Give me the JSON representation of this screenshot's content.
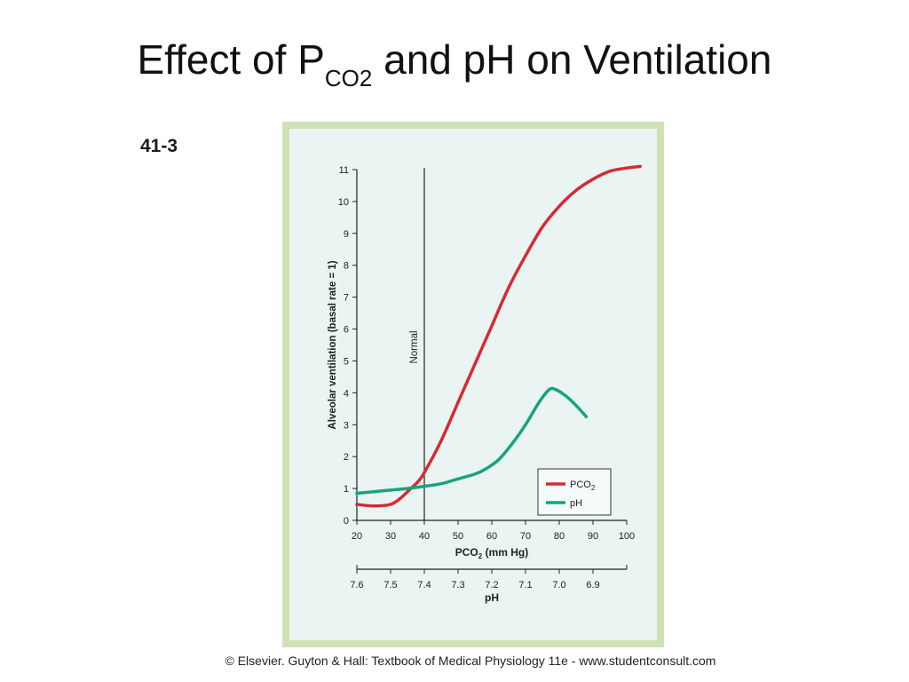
{
  "slide": {
    "title_main": "Effect of P",
    "title_sub": "CO2",
    "title_rest": " and pH on Ventilation",
    "figure_label": "41-3",
    "credit": "© Elsevier. Guyton & Hall: Textbook of Medical Physiology 11e - www.studentconsult.com"
  },
  "chart_data": {
    "type": "line",
    "ylabel": "Alveolar ventilation (basal rate = 1)",
    "xlabel": "PCO2 (mm Hg)",
    "xlabel2": "pH",
    "xlim": [
      20,
      100
    ],
    "ylim": [
      0,
      11
    ],
    "x_ticks": [
      "20",
      "30",
      "40",
      "50",
      "60",
      "70",
      "80",
      "90",
      "100"
    ],
    "y_ticks": [
      "0",
      "1",
      "2",
      "3",
      "4",
      "5",
      "6",
      "7",
      "8",
      "9",
      "10",
      "11"
    ],
    "ph_ticks": [
      {
        "label": "7.6",
        "pco2": 20
      },
      {
        "label": "7.5",
        "pco2": 30
      },
      {
        "label": "7.4",
        "pco2": 40
      },
      {
        "label": "7.3",
        "pco2": 50
      },
      {
        "label": "7.2",
        "pco2": 60
      },
      {
        "label": "7.1",
        "pco2": 70
      },
      {
        "label": "7.0",
        "pco2": 80
      },
      {
        "label": "6.9",
        "pco2": 90
      }
    ],
    "normal_line": {
      "x": 40,
      "label": "Normal"
    },
    "legend_position": "bottom-right",
    "grid": false,
    "series": [
      {
        "name": "PCO2",
        "color": "#d62a33",
        "x": [
          20,
          25,
          30,
          33,
          36,
          38,
          40,
          45,
          50,
          55,
          60,
          65,
          70,
          75,
          80,
          85,
          90,
          95,
          100,
          104
        ],
        "y": [
          0.5,
          0.45,
          0.5,
          0.7,
          1.0,
          1.2,
          1.5,
          2.5,
          3.7,
          4.9,
          6.1,
          7.3,
          8.3,
          9.2,
          9.85,
          10.35,
          10.7,
          10.95,
          11.05,
          11.1
        ]
      },
      {
        "name": "pH",
        "color": "#1aa37a",
        "x": [
          20,
          25,
          30,
          35,
          40,
          45,
          50,
          55,
          58,
          62,
          66,
          70,
          74,
          77,
          79,
          82,
          85,
          88
        ],
        "y": [
          0.85,
          0.9,
          0.95,
          1.0,
          1.07,
          1.15,
          1.3,
          1.45,
          1.6,
          1.9,
          2.4,
          3.0,
          3.7,
          4.1,
          4.1,
          3.9,
          3.6,
          3.25
        ]
      }
    ]
  }
}
